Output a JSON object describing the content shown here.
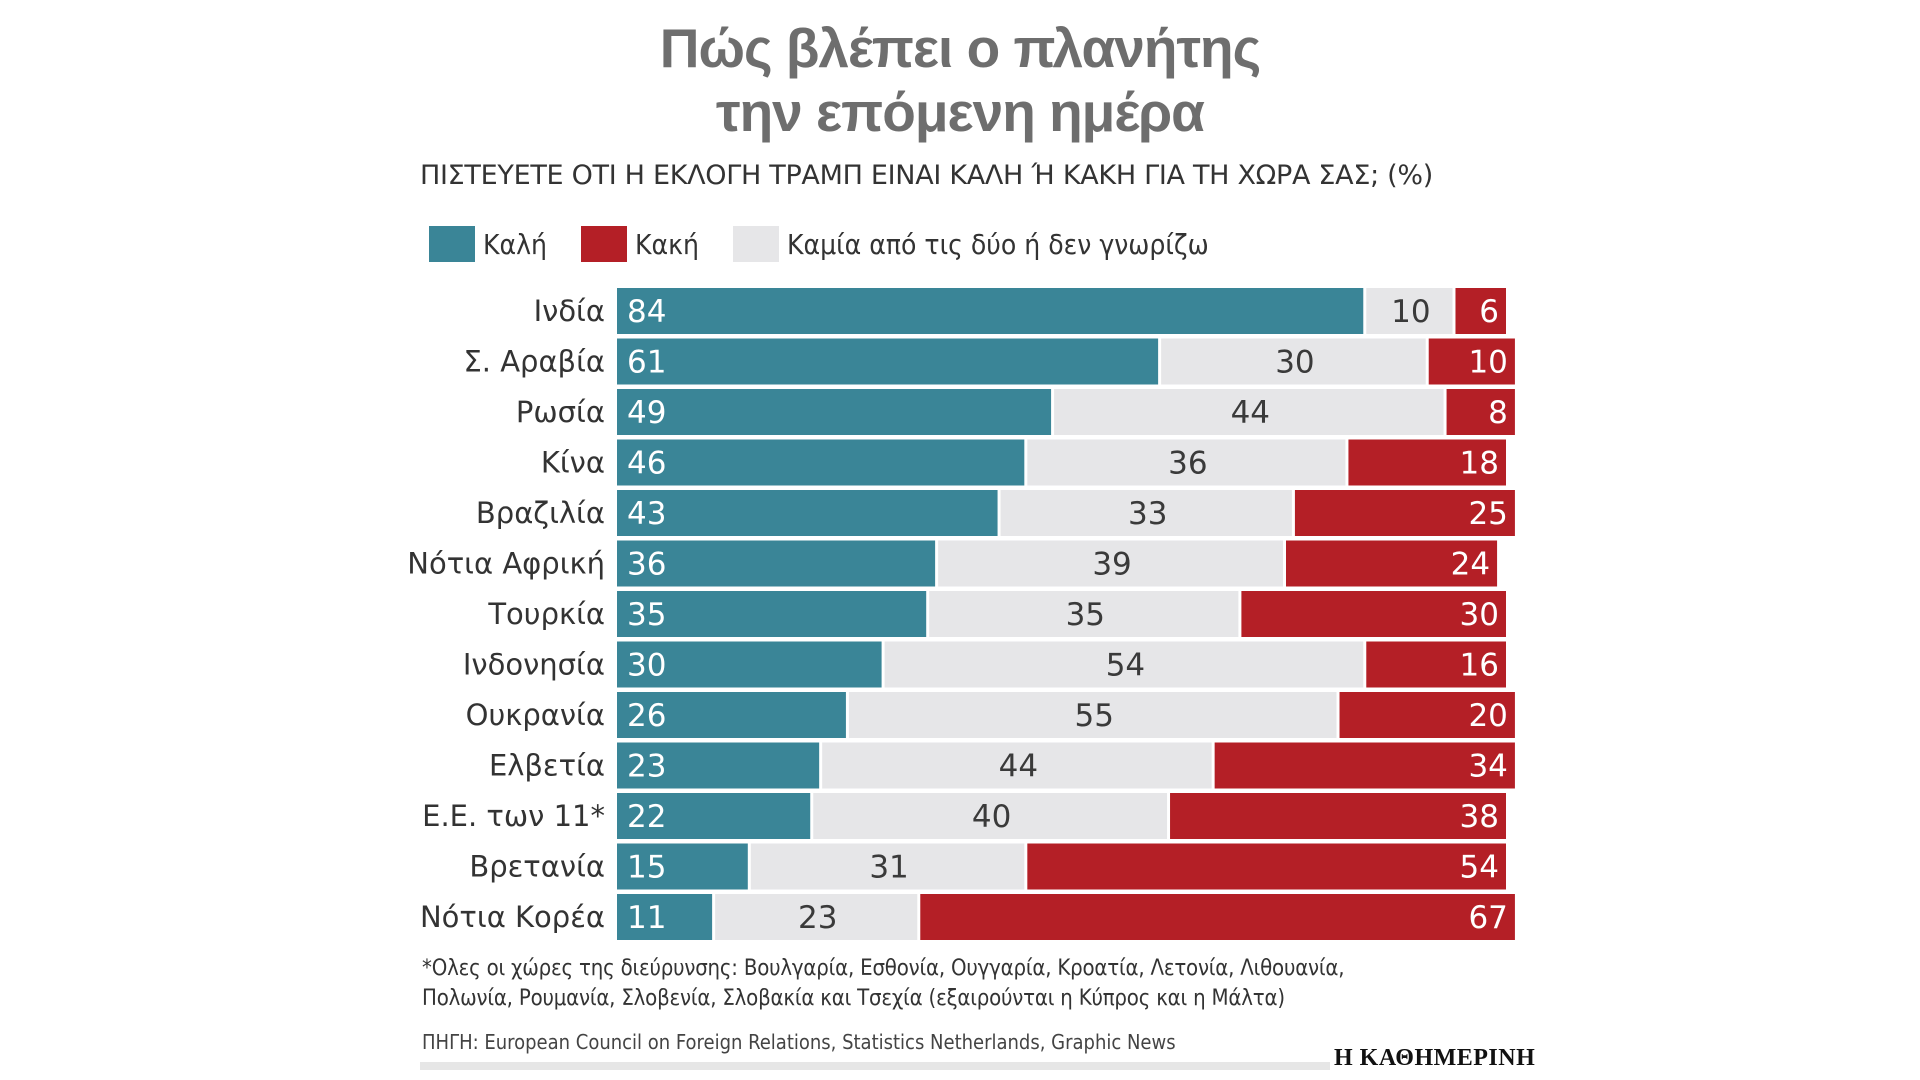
{
  "title_line1": "Πώς βλέπει ο πλανήτης",
  "title_line2": "την επόμενη ημέρα",
  "subtitle": "ΠΙΣΤΕΥΕΤΕ ΟΤΙ Η ΕΚΛΟΓΗ ΤΡΑΜΠ ΕΙΝΑΙ ΚΑΛΗ Ή ΚΑΚΗ ΓΙΑ ΤΗ ΧΩΡΑ ΣΑΣ; (%)",
  "legend": [
    {
      "label": "Καλή",
      "color": "#3a8597"
    },
    {
      "label": "Κακή",
      "color": "#b41f26"
    },
    {
      "label": "Καμία από τις δύο ή δεν γνωρίζω",
      "color": "#e6e6e8"
    }
  ],
  "chart_data": {
    "type": "bar",
    "orientation": "horizontal",
    "stacked": true,
    "title": "Πώς βλέπει ο πλανήτης την επόμενη ημέρα",
    "xlabel": "",
    "ylabel": "",
    "xlim": [
      0,
      100
    ],
    "categories": [
      "Ινδία",
      "Σ. Αραβία",
      "Ρωσία",
      "Κίνα",
      "Βραζιλία",
      "Νότια Αφρική",
      "Τουρκία",
      "Ινδονησία",
      "Ουκρανία",
      "Ελβετία",
      "Ε.Ε. των 11*",
      "Βρετανία",
      "Νότια Κορέα"
    ],
    "series": [
      {
        "name": "Καλή",
        "color": "#3a8597",
        "label_color": "#ffffff",
        "values": [
          84,
          61,
          49,
          46,
          43,
          36,
          35,
          30,
          26,
          23,
          22,
          15,
          11
        ]
      },
      {
        "name": "Καμία από τις δύο ή δεν γνωρίζω",
        "color": "#e6e6e8",
        "label_color": "#3a3a3a",
        "values": [
          10,
          30,
          44,
          36,
          33,
          39,
          35,
          54,
          55,
          44,
          40,
          31,
          23
        ]
      },
      {
        "name": "Κακή",
        "color": "#b41f26",
        "label_color": "#ffffff",
        "values": [
          6,
          10,
          8,
          18,
          25,
          24,
          30,
          16,
          20,
          34,
          38,
          54,
          67
        ]
      }
    ]
  },
  "footnote_line1": "*Ολες οι χώρες της διεύρυνσης: Βουλγαρία, Εσθονία, Ουγγαρία, Κροατία, Λετονία, Λιθουανία,",
  "footnote_line2": "Πολωνία, Ρουμανία, Σλοβενία, Σλοβακία και Τσεχία (εξαιρούνται η Κύπρος και η Μάλτα)",
  "source": "ΠΗΓΗ: European Council on Foreign Relations, Statistics Netherlands, Graphic News",
  "publisher": "Η ΚΑΘΗΜΕΡΙΝΗ"
}
